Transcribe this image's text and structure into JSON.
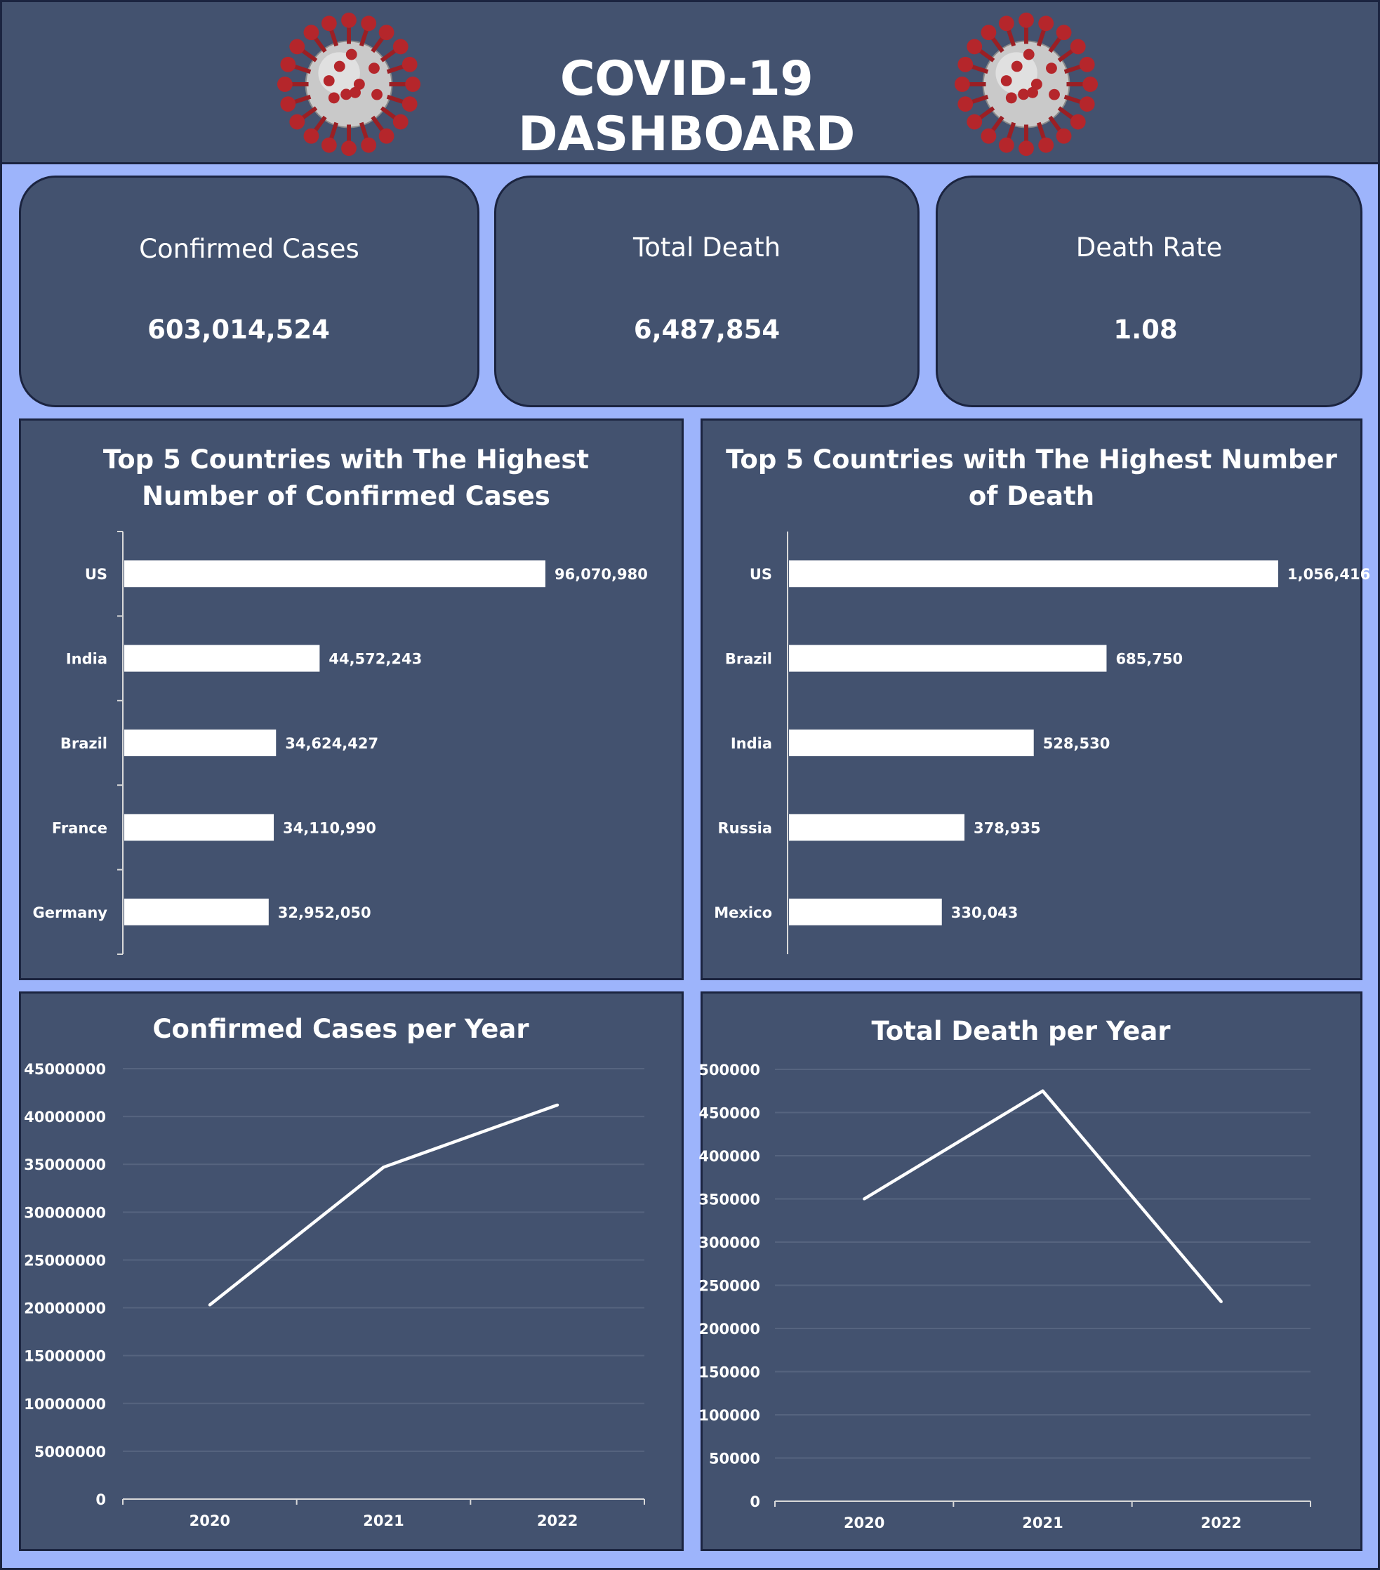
{
  "dashboard": {
    "title": "COVID-19 DASHBOARD",
    "colors": {
      "background": "#9db4fb",
      "panel": "#43526f",
      "border": "#1b2440",
      "text": "#ffffff",
      "virus": "#b5262b"
    }
  },
  "kpis": {
    "confirmed": {
      "label": "Confirmed Cases",
      "value": "603,014,524"
    },
    "death": {
      "label": "Total Death",
      "value": "6,487,854"
    },
    "rate": {
      "label": "Death Rate",
      "value": "1.08"
    }
  },
  "chart_data": [
    {
      "type": "bar",
      "orientation": "horizontal",
      "title": "Top 5 Countries with The Highest\nNumber of Confirmed Cases",
      "categories": [
        "US",
        "India",
        "Brazil",
        "France",
        "Germany"
      ],
      "values": [
        96070980,
        44572243,
        34624427,
        34110990,
        32952050
      ],
      "labels": [
        "96,070,980",
        "44,572,243",
        "34,624,427",
        "34,110,990",
        "32,952,050"
      ],
      "xlim": [
        0,
        96070980
      ],
      "grid": false,
      "legend": "none"
    },
    {
      "type": "bar",
      "orientation": "horizontal",
      "title": "Top 5 Countries with The Highest Number\nof Death",
      "categories": [
        "US",
        "Brazil",
        "India",
        "Russia",
        "Mexico"
      ],
      "values": [
        1056416,
        685750,
        528530,
        378935,
        330043
      ],
      "labels": [
        "1,056,416",
        "685,750",
        "528,530",
        "378,935",
        "330,043"
      ],
      "xlim": [
        0,
        1056416
      ],
      "grid": false,
      "legend": "none"
    },
    {
      "type": "line",
      "title": "Confirmed Cases per Year",
      "x": [
        "2020",
        "2021",
        "2022"
      ],
      "values": [
        20300000,
        34700000,
        41200000
      ],
      "ylim": [
        0,
        45000000
      ],
      "yticks": [
        "0",
        "5000000",
        "10000000",
        "15000000",
        "20000000",
        "25000000",
        "30000000",
        "35000000",
        "40000000",
        "45000000"
      ],
      "grid": true,
      "legend": "none"
    },
    {
      "type": "line",
      "title": "Total Death per Year",
      "x": [
        "2020",
        "2021",
        "2022"
      ],
      "values": [
        350000,
        475000,
        231000
      ],
      "ylim": [
        0,
        500000
      ],
      "yticks": [
        "0",
        "50000",
        "100000",
        "150000",
        "200000",
        "250000",
        "300000",
        "350000",
        "400000",
        "450000",
        "500000"
      ],
      "grid": true,
      "legend": "none"
    }
  ]
}
